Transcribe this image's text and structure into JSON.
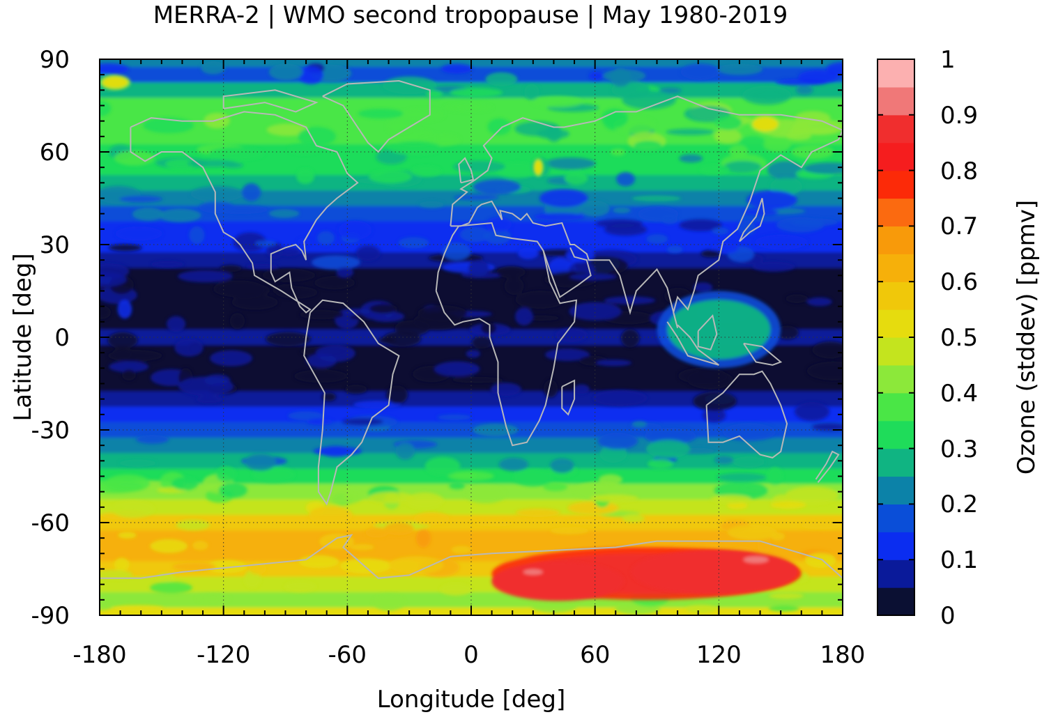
{
  "title": "MERRA-2 | WMO second tropopause | May 1980-2019",
  "map": {
    "xlabel": "Longitude [deg]",
    "ylabel": "Latitude [deg]",
    "x_ticks": [
      "-180",
      "-120",
      "-60",
      "0",
      "60",
      "120",
      "180"
    ],
    "y_ticks": [
      "90",
      "60",
      "30",
      "0",
      "-30",
      "-60",
      "-90"
    ],
    "xlim": [
      -180,
      180
    ],
    "ylim": [
      -90,
      90
    ],
    "grid": true,
    "coastlines": "light gray"
  },
  "colorbar": {
    "label": "Ozone (stddev) [ppmv]",
    "ticks": [
      "1",
      "0.9",
      "0.8",
      "0.7",
      "0.6",
      "0.5",
      "0.4",
      "0.3",
      "0.2",
      "0.1",
      "0"
    ],
    "range": [
      0,
      1
    ],
    "step": 0.05,
    "colors": [
      "#0b1033",
      "#0a1a9a",
      "#0b2df0",
      "#0a4ed8",
      "#0c82a8",
      "#10b482",
      "#1fdc5a",
      "#4ae646",
      "#8ce83a",
      "#c4e41e",
      "#e6dc0e",
      "#f0c80a",
      "#f6b00a",
      "#f89a0a",
      "#fb6a10",
      "#fc2a08",
      "#f51d1e",
      "#f02e2e",
      "#f07878",
      "#fcb0b0"
    ]
  },
  "chart_data": {
    "type": "heatmap",
    "title": "MERRA-2 | WMO second tropopause | May 1980-2019",
    "xlabel": "Longitude [deg]",
    "ylabel": "Latitude [deg]",
    "xlim": [
      -180,
      180
    ],
    "ylim": [
      -90,
      90
    ],
    "colorbar_label": "Ozone (stddev) [ppmv]",
    "colorbar_range": [
      0,
      1
    ],
    "zonal_profile": {
      "lat": [
        90,
        85,
        80,
        75,
        70,
        65,
        60,
        55,
        50,
        45,
        40,
        35,
        30,
        25,
        20,
        15,
        10,
        5,
        0,
        -5,
        -10,
        -15,
        -20,
        -25,
        -30,
        -35,
        -40,
        -45,
        -50,
        -55,
        -60,
        -65,
        -70,
        -75,
        -80,
        -85,
        -90
      ],
      "value": [
        0.2,
        0.15,
        0.28,
        0.35,
        0.38,
        0.35,
        0.33,
        0.3,
        0.25,
        0.2,
        0.18,
        0.13,
        0.11,
        0.08,
        0.04,
        0.03,
        0.03,
        0.04,
        0.05,
        0.03,
        0.03,
        0.03,
        0.06,
        0.12,
        0.16,
        0.2,
        0.25,
        0.33,
        0.4,
        0.48,
        0.55,
        0.6,
        0.62,
        0.55,
        0.45,
        0.4,
        0.5
      ]
    },
    "features": [
      {
        "lon": [
          10,
          160
        ],
        "lat": [
          -85,
          -68
        ],
        "value": 0.85
      },
      {
        "lon": [
          30,
          35
        ],
        "lat": [
          52,
          58
        ],
        "value": 0.5
      },
      {
        "lon": [
          -180,
          -165
        ],
        "lat": [
          80,
          85
        ],
        "value": 0.5
      },
      {
        "lon": [
          135,
          150
        ],
        "lat": [
          66,
          72
        ],
        "value": 0.5
      },
      {
        "lon": [
          90,
          150
        ],
        "lat": [
          -10,
          15
        ],
        "value": 0.25
      }
    ]
  }
}
